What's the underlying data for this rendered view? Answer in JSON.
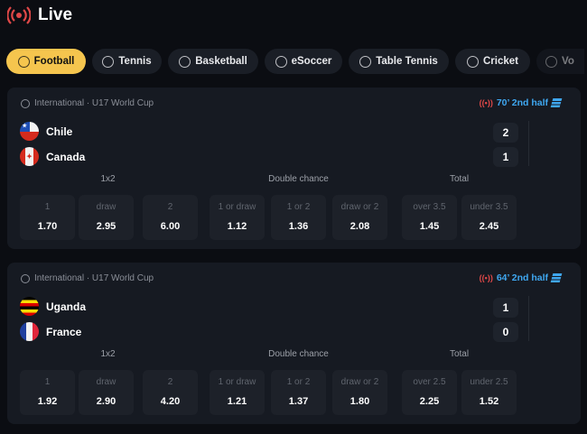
{
  "header": {
    "title": "Live",
    "icon": "live-broadcast-icon",
    "accent": "#e04848"
  },
  "tabs": [
    {
      "label": "Football",
      "active": true
    },
    {
      "label": "Tennis"
    },
    {
      "label": "Basketball"
    },
    {
      "label": "eSoccer"
    },
    {
      "label": "Table Tennis"
    },
    {
      "label": "Cricket"
    },
    {
      "label": "Vo"
    }
  ],
  "market_groups": [
    "1x2",
    "Double chance",
    "Total"
  ],
  "matches": [
    {
      "league": "International · U17 World Cup",
      "status": "70’ 2nd half",
      "home": "Chile",
      "away": "Canada",
      "home_score": "2",
      "away_score": "1",
      "odds": [
        {
          "l": "1",
          "v": "1.70"
        },
        {
          "l": "draw",
          "v": "2.95"
        },
        {
          "l": "2",
          "v": "6.00"
        },
        {
          "l": "1 or draw",
          "v": "1.12"
        },
        {
          "l": "1 or 2",
          "v": "1.36"
        },
        {
          "l": "draw or 2",
          "v": "2.08"
        },
        {
          "l": "over 3.5",
          "v": "1.45"
        },
        {
          "l": "under 3.5",
          "v": "2.45"
        }
      ]
    },
    {
      "league": "International · U17 World Cup",
      "status": "64’ 2nd half",
      "home": "Uganda",
      "away": "France",
      "home_score": "1",
      "away_score": "0",
      "odds": [
        {
          "l": "1",
          "v": "1.92"
        },
        {
          "l": "draw",
          "v": "2.90"
        },
        {
          "l": "2",
          "v": "4.20"
        },
        {
          "l": "1 or draw",
          "v": "1.21"
        },
        {
          "l": "1 or 2",
          "v": "1.37"
        },
        {
          "l": "draw or 2",
          "v": "1.80"
        },
        {
          "l": "over 2.5",
          "v": "2.25"
        },
        {
          "l": "under 2.5",
          "v": "1.52"
        }
      ]
    }
  ]
}
